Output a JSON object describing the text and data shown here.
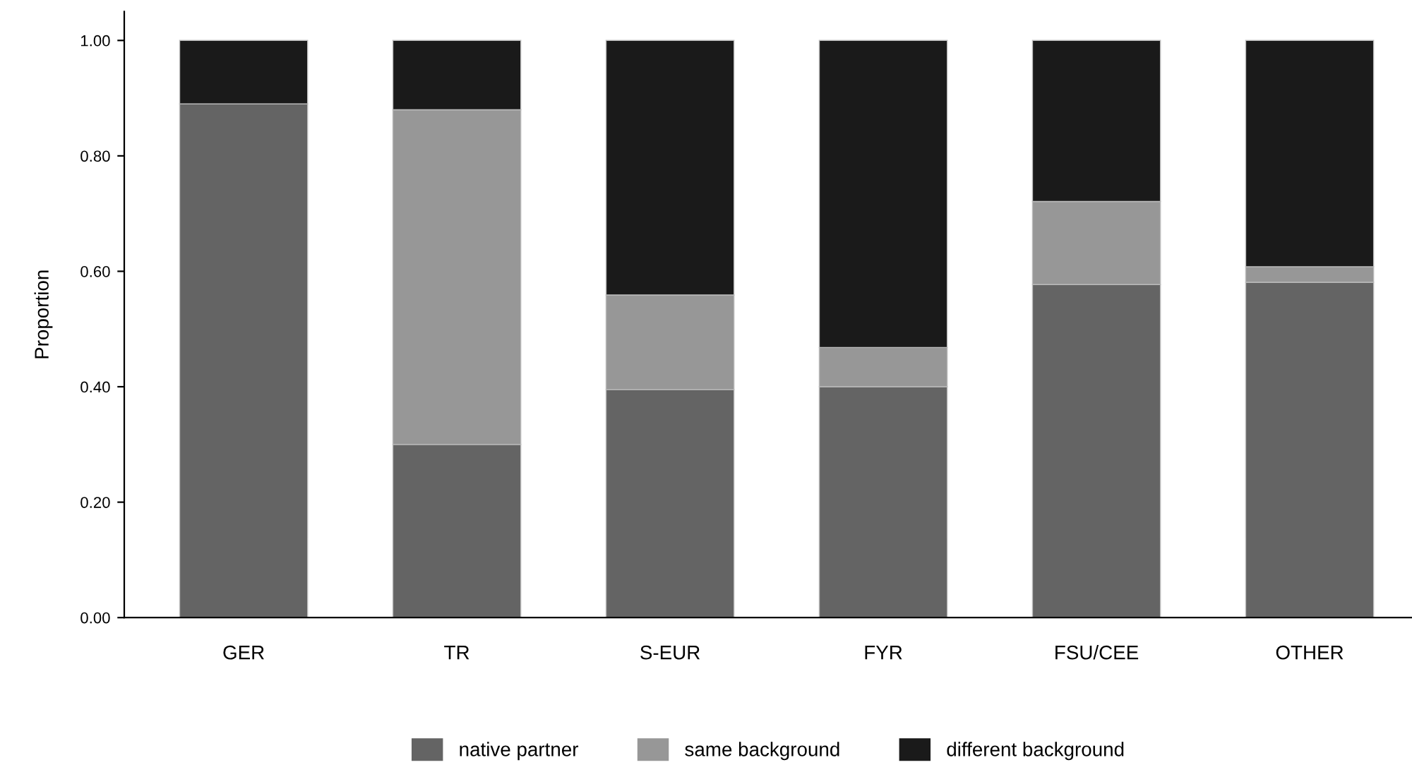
{
  "chart_data": {
    "type": "bar",
    "stacked": true,
    "ylabel": "Proportion",
    "categories": [
      "GER",
      "TR",
      "S-EUR",
      "FYR",
      "FSU/CEE",
      "OTHER"
    ],
    "series": [
      {
        "name": "native partner",
        "color": "#646464",
        "values": [
          0.89,
          0.3,
          0.395,
          0.4,
          0.577,
          0.581
        ]
      },
      {
        "name": "same background",
        "color": "#979797",
        "values": [
          0.0,
          0.58,
          0.164,
          0.068,
          0.144,
          0.027
        ]
      },
      {
        "name": "different background",
        "color": "#1a1a1a",
        "values": [
          0.11,
          0.12,
          0.441,
          0.532,
          0.279,
          0.392
        ]
      }
    ],
    "ylim": [
      0,
      1.05
    ],
    "yticks": [
      {
        "value": 0,
        "label": "0.00"
      },
      {
        "value": 0.2,
        "label": "0.20"
      },
      {
        "value": 0.4,
        "label": "0.40"
      },
      {
        "value": 0.6,
        "label": "0.60"
      },
      {
        "value": 0.8,
        "label": "0.80"
      },
      {
        "value": 1.0,
        "label": "1.00"
      }
    ],
    "grid": false,
    "legend": "bottom"
  }
}
